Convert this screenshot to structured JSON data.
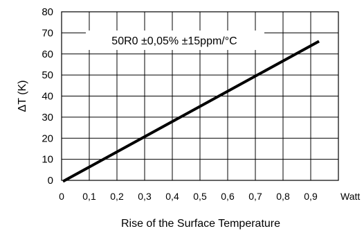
{
  "chart_data": {
    "type": "line",
    "title": "",
    "annotation": "50R0 ±0,05% ±15ppm/°C",
    "xlabel": "Rise of the Surface Temperature",
    "ylabel": "ΔT  (K)",
    "x_unit_label": "Watt",
    "xlim": [
      0,
      1.0
    ],
    "ylim": [
      0,
      80
    ],
    "x_ticks": [
      "0",
      "0,1",
      "0,2",
      "0,3",
      "0,4",
      "0,5",
      "0,6",
      "0,7",
      "0,8",
      "0,9"
    ],
    "x_tick_values": [
      0,
      0.1,
      0.2,
      0.3,
      0.4,
      0.5,
      0.6,
      0.7,
      0.8,
      0.9
    ],
    "y_ticks": [
      "0",
      "10",
      "20",
      "30",
      "40",
      "50",
      "60",
      "70",
      "80"
    ],
    "y_tick_values": [
      0,
      10,
      20,
      30,
      40,
      50,
      60,
      70,
      80
    ],
    "grid": true,
    "line_color": "#000000",
    "series": [
      {
        "x": [
          0.005,
          0.93
        ],
        "y": [
          -0.5,
          66
        ]
      }
    ]
  }
}
